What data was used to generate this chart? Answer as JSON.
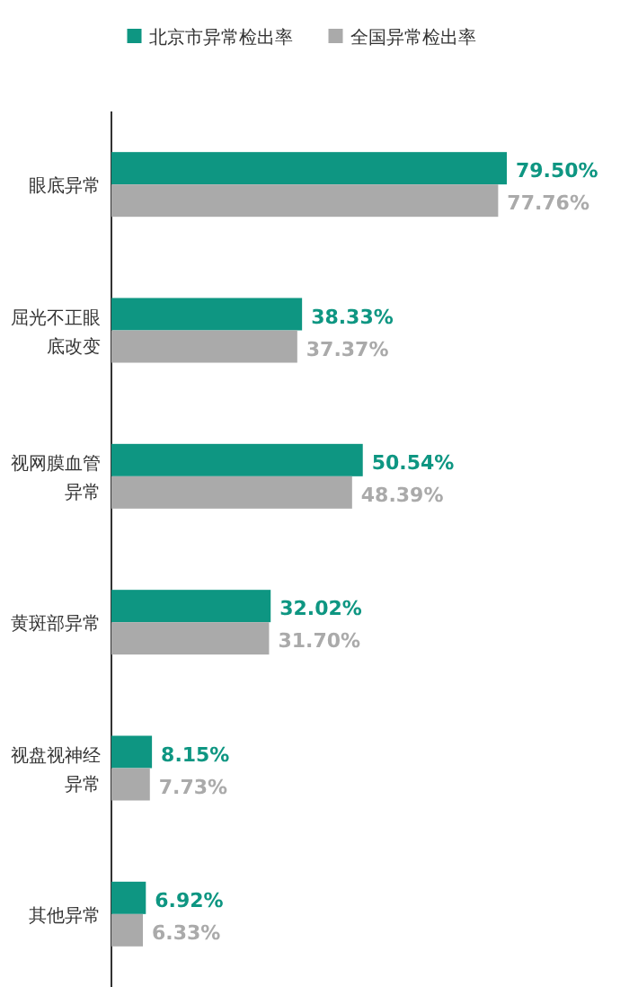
{
  "chart_data": {
    "type": "bar",
    "orientation": "horizontal",
    "categories": [
      "眼底异常",
      "屈光不正眼底改变",
      "视网膜血管异常",
      "黄斑部异常",
      "视盘视神经异常",
      "其他异常"
    ],
    "series": [
      {
        "name": "北京市异常检出率",
        "color": "#0e9682",
        "values": [
          79.5,
          38.33,
          50.54,
          32.02,
          8.15,
          6.92
        ],
        "value_labels": [
          "79.50%",
          "38.33%",
          "50.54%",
          "32.02%",
          "8.15%",
          "6.92%"
        ]
      },
      {
        "name": "全国异常检出率",
        "color": "#aaaaaa",
        "values": [
          77.76,
          37.37,
          48.39,
          31.7,
          7.73,
          6.33
        ],
        "value_labels": [
          "77.76%",
          "37.37%",
          "48.39%",
          "31.70%",
          "7.73%",
          "6.33%"
        ]
      }
    ],
    "legend": "top"
  }
}
